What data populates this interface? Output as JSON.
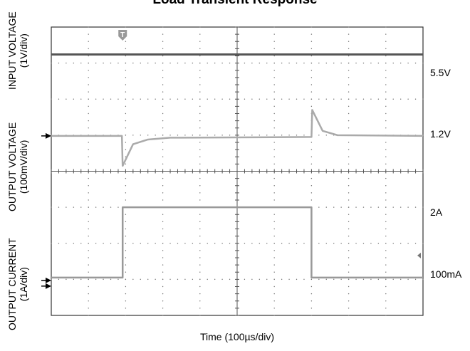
{
  "chart_data": {
    "type": "line",
    "title": "Load Transient Response",
    "xlabel": "Time (100µs/div)",
    "x_divisions": 10,
    "y_divisions": 8,
    "y_axis_labels": [
      {
        "line1": "INPUT VOLTAGE",
        "line2": "(1V/div)"
      },
      {
        "line1": "OUTPUT VOLTAGE",
        "line2": "(100mV/div)"
      },
      {
        "line1": "OUTPUT CURRENT",
        "line2": "(1A/div)"
      }
    ],
    "grid": true,
    "trigger_marker": "T",
    "series": [
      {
        "level_label": "5.5V",
        "color": "#555555",
        "x": [
          0,
          10
        ],
        "y": [
          7.24,
          7.24
        ]
      },
      {
        "level_label": "1.2V",
        "color": "#aaaaaa",
        "x": [
          0,
          1.9,
          1.92,
          2.2,
          2.6,
          3.2,
          7.0,
          7.02,
          7.3,
          7.7,
          10
        ],
        "y": [
          4.98,
          4.98,
          4.15,
          4.75,
          4.88,
          4.93,
          4.95,
          5.7,
          5.12,
          5.0,
          4.98
        ]
      },
      {
        "level_label": "2A",
        "color": "#999999",
        "x": [
          0,
          1.92,
          1.92,
          7.0,
          7.0,
          10
        ],
        "y": [
          1.05,
          1.05,
          3.0,
          3.0,
          1.05,
          1.05
        ]
      },
      {
        "level_label": "100mA",
        "color": null
      }
    ]
  }
}
